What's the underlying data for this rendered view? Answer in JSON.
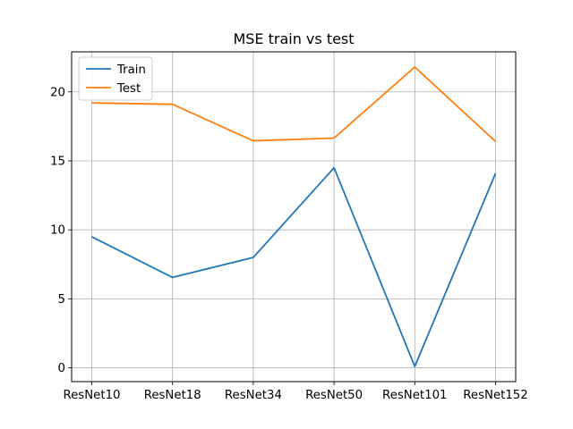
{
  "chart_data": {
    "type": "line",
    "title": "MSE train vs test",
    "xlabel": "",
    "ylabel": "",
    "categories": [
      "ResNet10",
      "ResNet18",
      "ResNet34",
      "ResNet50",
      "ResNet101",
      "ResNet152"
    ],
    "series": [
      {
        "name": "Train",
        "values": [
          9.5,
          6.55,
          8.0,
          14.5,
          0.1,
          14.1
        ],
        "color": "#1f77b4"
      },
      {
        "name": "Test",
        "values": [
          19.2,
          19.1,
          16.45,
          16.65,
          21.8,
          16.4
        ],
        "color": "#ff7f0e"
      }
    ],
    "yticks": [
      0,
      5,
      10,
      15,
      20
    ],
    "ylim": [
      -1.0,
      22.9
    ],
    "grid": true,
    "legend_position": "upper-left"
  }
}
